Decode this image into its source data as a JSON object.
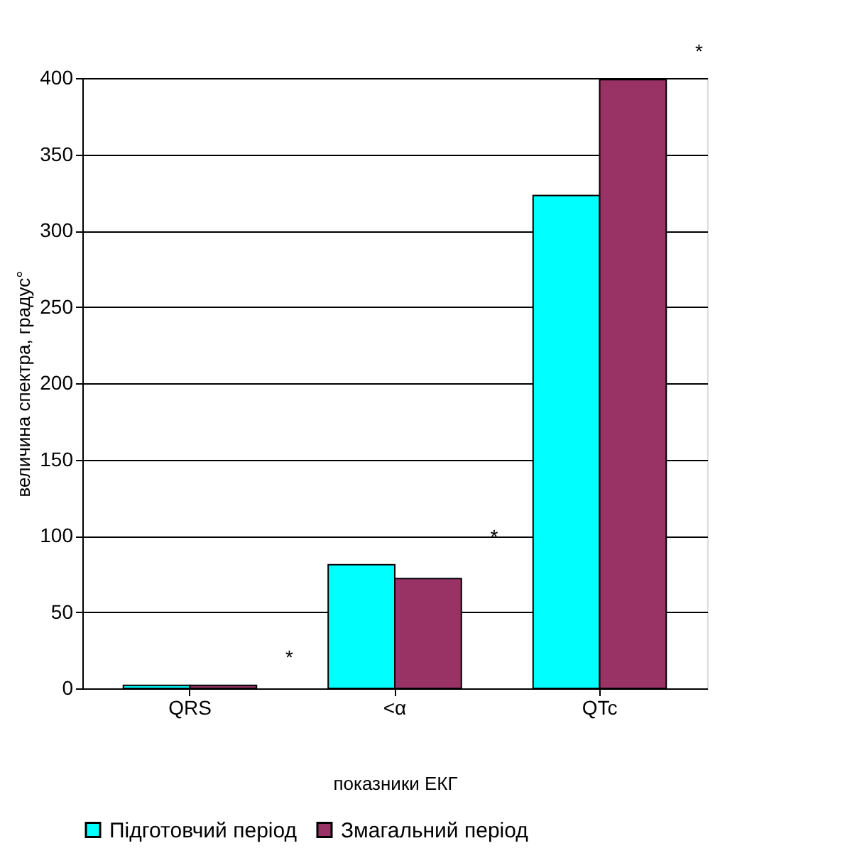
{
  "chart_data": {
    "type": "bar",
    "xlabel": "показники ЕКГ",
    "ylabel": "величина спектра, градус°",
    "categories": [
      "QRS",
      "<α",
      "QTc"
    ],
    "series": [
      {
        "name": "Підготовчий період",
        "color": "#00ffff",
        "values": [
          2,
          81,
          323
        ]
      },
      {
        "name": "Змагальний період",
        "color": "#993366",
        "values": [
          2,
          72,
          399
        ]
      }
    ],
    "ylim": [
      0,
      400
    ],
    "yticks": [
      0,
      50,
      100,
      150,
      200,
      250,
      300,
      350,
      400
    ],
    "grid": "y",
    "legend": "bottom",
    "annotations": [
      "*",
      "*",
      "*"
    ]
  }
}
